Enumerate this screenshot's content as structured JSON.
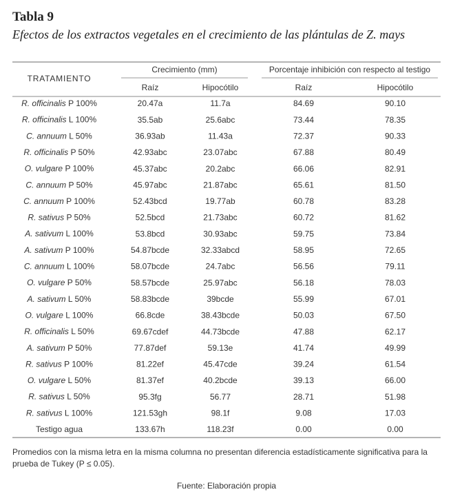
{
  "header": {
    "title": "Tabla 9",
    "subtitle": "Efectos de los extractos vegetales en el crecimiento de las plántulas de Z. mays"
  },
  "table": {
    "treatment_header": "TRATAMIENTO",
    "groups": [
      "Crecimiento (mm)",
      "Porcentaje inhibición con respecto al testigo"
    ],
    "subheaders": [
      "Raíz",
      "Hipocótilo",
      "Raíz",
      "Hipocótilo"
    ],
    "rows": [
      {
        "species": "R. officinalis",
        "dose": "P 100%",
        "cells": [
          "20.47a",
          "11.7a",
          "84.69",
          "90.10"
        ]
      },
      {
        "species": "R. officinalis",
        "dose": "L 100%",
        "cells": [
          "35.5ab",
          "25.6abc",
          "73.44",
          "78.35"
        ]
      },
      {
        "species": "C. annuum",
        "dose": "L 50%",
        "cells": [
          "36.93ab",
          "11.43a",
          "72.37",
          "90.33"
        ]
      },
      {
        "species": "R. officinalis",
        "dose": "P 50%",
        "cells": [
          "42.93abc",
          "23.07abc",
          "67.88",
          "80.49"
        ]
      },
      {
        "species": "O. vulgare",
        "dose": "P 100%",
        "cells": [
          "45.37abc",
          "20.2abc",
          "66.06",
          "82.91"
        ]
      },
      {
        "species": "C. annuum",
        "dose": "P 50%",
        "cells": [
          "45.97abc",
          "21.87abc",
          "65.61",
          "81.50"
        ]
      },
      {
        "species": "C. annuum",
        "dose": "P 100%",
        "cells": [
          "52.43bcd",
          "19.77ab",
          "60.78",
          "83.28"
        ]
      },
      {
        "species": "R. sativus",
        "dose": "P 50%",
        "cells": [
          "52.5bcd",
          "21.73abc",
          "60.72",
          "81.62"
        ]
      },
      {
        "species": "A. sativum",
        "dose": "L 100%",
        "cells": [
          "53.8bcd",
          "30.93abc",
          "59.75",
          "73.84"
        ]
      },
      {
        "species": "A. sativum",
        "dose": "P 100%",
        "cells": [
          "54.87bcde",
          "32.33abcd",
          "58.95",
          "72.65"
        ]
      },
      {
        "species": "C. annuum",
        "dose": "L 100%",
        "cells": [
          "58.07bcde",
          "24.7abc",
          "56.56",
          "79.11"
        ]
      },
      {
        "species": "O. vulgare",
        "dose": "P 50%",
        "cells": [
          "58.57bcde",
          "25.97abc",
          "56.18",
          "78.03"
        ]
      },
      {
        "species": "A. sativum",
        "dose": "L 50%",
        "cells": [
          "58.83bcde",
          "39bcde",
          "55.99",
          "67.01"
        ]
      },
      {
        "species": "O. vulgare",
        "dose": "L 100%",
        "cells": [
          "66.8cde",
          "38.43bcde",
          "50.03",
          "67.50"
        ]
      },
      {
        "species": "R. officinalis",
        "dose": "L 50%",
        "cells": [
          "69.67cdef",
          "44.73bcde",
          "47.88",
          "62.17"
        ]
      },
      {
        "species": "A. sativum",
        "dose": "P 50%",
        "cells": [
          "77.87def",
          "59.13e",
          "41.74",
          "49.99"
        ]
      },
      {
        "species": "R. sativus",
        "dose": "P 100%",
        "cells": [
          "81.22ef",
          "45.47cde",
          "39.24",
          "61.54"
        ]
      },
      {
        "species": "O. vulgare",
        "dose": "L 50%",
        "cells": [
          "81.37ef",
          "40.2bcde",
          "39.13",
          "66.00"
        ]
      },
      {
        "species": "R. sativus",
        "dose": "L 50%",
        "cells": [
          "95.3fg",
          "56.77",
          "28.71",
          "51.98"
        ]
      },
      {
        "species": "R. sativus",
        "dose": "L 100%",
        "cells": [
          "121.53gh",
          "98.1f",
          "9.08",
          "17.03"
        ]
      },
      {
        "label": "Testigo agua",
        "cells": [
          "133.67h",
          "118.23f",
          "0.00",
          "0.00"
        ]
      }
    ]
  },
  "footer": {
    "note": "Promedios con la misma letra en la misma columna no presentan diferencia estadísticamente significativa para la prueba de Tukey (P ≤ 0.05).",
    "source": "Fuente: Elaboración propia"
  }
}
